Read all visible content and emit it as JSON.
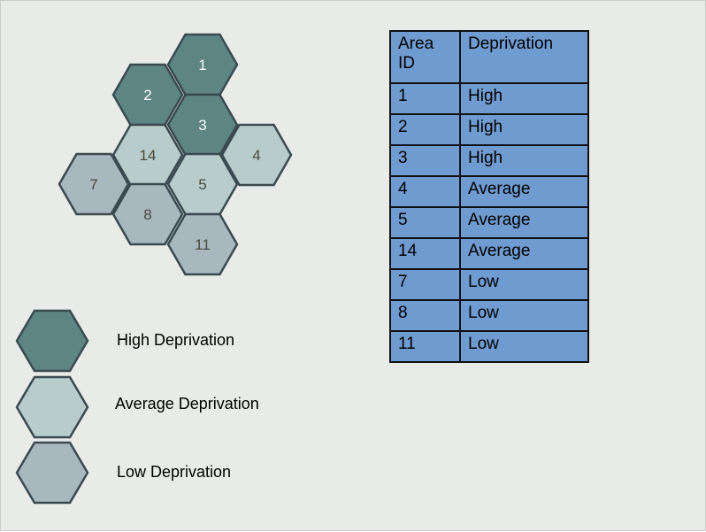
{
  "colors": {
    "High": "#5d8683",
    "Average": "#b8cccb",
    "Low": "#a9b7bf",
    "hex_stroke": "#3a4a50",
    "table_fill": "#6f9bd0"
  },
  "hexmap": {
    "areas": [
      {
        "id": "1",
        "level": "High"
      },
      {
        "id": "2",
        "level": "High"
      },
      {
        "id": "3",
        "level": "High"
      },
      {
        "id": "14",
        "level": "Average"
      },
      {
        "id": "4",
        "level": "Average"
      },
      {
        "id": "7",
        "level": "Low"
      },
      {
        "id": "5",
        "level": "Average"
      },
      {
        "id": "8",
        "level": "Low"
      },
      {
        "id": "11",
        "level": "Low"
      }
    ]
  },
  "legend": {
    "items": [
      {
        "level": "High",
        "label": "High Deprivation"
      },
      {
        "level": "Average",
        "label": "Average Deprivation"
      },
      {
        "level": "Low",
        "label": "Low Deprivation"
      }
    ]
  },
  "table": {
    "headers": [
      "Area ID",
      "Deprivation"
    ],
    "rows": [
      [
        "1",
        "High"
      ],
      [
        "2",
        "High"
      ],
      [
        "3",
        "High"
      ],
      [
        "4",
        "Average"
      ],
      [
        "5",
        "Average"
      ],
      [
        "14",
        "Average"
      ],
      [
        "7",
        "Low"
      ],
      [
        "8",
        "Low"
      ],
      [
        "11",
        "Low"
      ]
    ]
  }
}
